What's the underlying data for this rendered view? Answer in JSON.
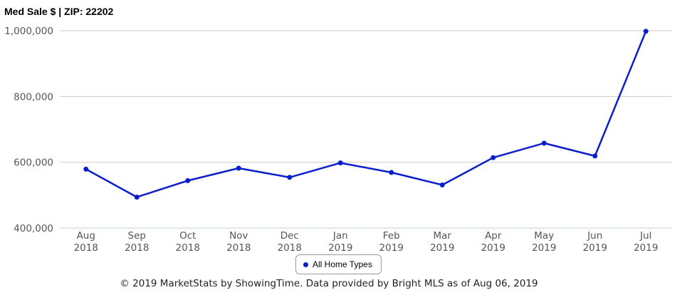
{
  "chart_data": {
    "type": "line",
    "title": "Med Sale $ | ZIP: 22202",
    "categories": [
      "Aug\n2018",
      "Sep\n2018",
      "Oct\n2018",
      "Nov\n2018",
      "Dec\n2018",
      "Jan\n2019",
      "Feb\n2019",
      "Mar\n2019",
      "Apr\n2019",
      "May\n2019",
      "Jun\n2019",
      "Jul\n2019"
    ],
    "series": [
      {
        "name": "All Home Types",
        "color": "#0a1fc9",
        "values": [
          579000,
          494000,
          544000,
          582000,
          554000,
          598000,
          569000,
          531000,
          614000,
          658000,
          619000,
          998000
        ]
      }
    ],
    "ylim": [
      400000,
      1000000
    ],
    "yticks": [
      "400,000",
      "600,000",
      "800,000",
      "1,000,000"
    ],
    "ytick_values": [
      400000,
      600000,
      800000,
      1000000
    ],
    "grid": true,
    "legend": "bottom-center",
    "xlabel": "",
    "ylabel": ""
  },
  "footer": "© 2019 MarketStats by ShowingTime. Data provided by Bright MLS as of Aug 06, 2019"
}
